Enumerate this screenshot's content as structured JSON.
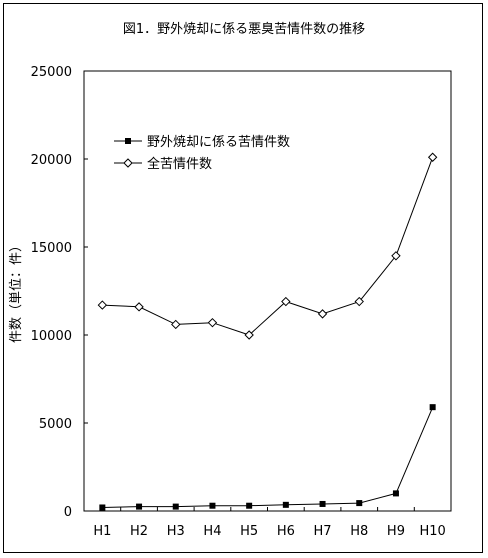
{
  "chart_data": {
    "type": "line",
    "title": "図1．野外焼却に係る悪臭苦情件数の推移",
    "ylabel": "件数（単位：件）",
    "xlabel": "",
    "categories": [
      "H1",
      "H2",
      "H3",
      "H4",
      "H5",
      "H6",
      "H7",
      "H8",
      "H9",
      "H10"
    ],
    "ylim": [
      0,
      25000
    ],
    "yticks": [
      0,
      5000,
      10000,
      15000,
      20000,
      25000
    ],
    "grid": false,
    "legend_position": "top-left",
    "series": [
      {
        "name": "野外焼却に係る苦情件数",
        "marker": "filled-square",
        "values": [
          200,
          250,
          250,
          300,
          300,
          350,
          400,
          450,
          1000,
          5900
        ]
      },
      {
        "name": "全苦情件数",
        "marker": "open-diamond",
        "values": [
          11700,
          11600,
          10600,
          10700,
          10000,
          11900,
          11200,
          11900,
          14500,
          20100
        ]
      }
    ]
  }
}
